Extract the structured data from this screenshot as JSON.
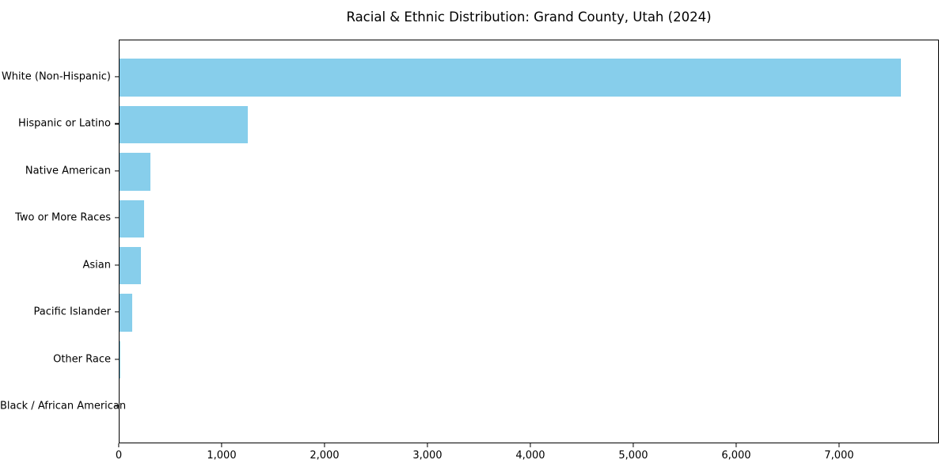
{
  "chart_data": {
    "type": "bar",
    "orientation": "horizontal",
    "title": "Racial & Ethnic Distribution: Grand County, Utah (2024)",
    "categories": [
      "White (Non-Hispanic)",
      "Hispanic or Latino",
      "Native American",
      "Two or More Races",
      "Asian",
      "Pacific Islander",
      "Other Race",
      "Black / African American"
    ],
    "values": [
      7590,
      1250,
      300,
      240,
      210,
      120,
      10,
      0
    ],
    "xlabel": "",
    "ylabel": "",
    "xlim": [
      0,
      7970
    ],
    "xticks": [
      0,
      1000,
      2000,
      3000,
      4000,
      5000,
      6000,
      7000
    ],
    "xtick_labels": [
      "0",
      "1,000",
      "2,000",
      "3,000",
      "4,000",
      "5,000",
      "6,000",
      "7,000"
    ],
    "bar_color": "#87CEEB",
    "frame_color": "#000000",
    "text_color": "#000000",
    "background_color": "#ffffff",
    "grid": false,
    "legend": null
  }
}
